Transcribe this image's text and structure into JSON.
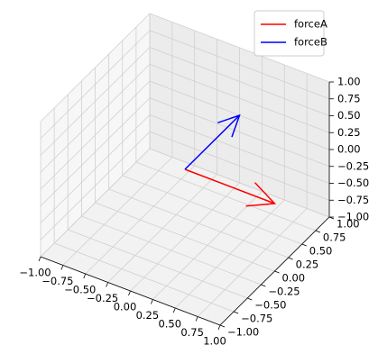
{
  "chart_data": {
    "type": "quiver3d",
    "series": [
      {
        "name": "forceA",
        "color": "#ff0000",
        "origin": [
          0,
          0,
          0
        ],
        "vector": [
          1,
          0,
          0
        ]
      },
      {
        "name": "forceB",
        "color": "#0000ff",
        "origin": [
          0,
          0,
          0
        ],
        "vector": [
          0,
          1,
          0
        ]
      }
    ],
    "xlim": [
      -1,
      1
    ],
    "ylim": [
      -1,
      1
    ],
    "zlim": [
      -1,
      1
    ],
    "xticks": [
      {
        "value": -1,
        "label": "−1.00"
      },
      {
        "value": -0.75,
        "label": "−0.75"
      },
      {
        "value": -0.5,
        "label": "−0.50"
      },
      {
        "value": -0.25,
        "label": "−0.25"
      },
      {
        "value": 0,
        "label": "0.00"
      },
      {
        "value": 0.25,
        "label": "0.25"
      },
      {
        "value": 0.5,
        "label": "0.50"
      },
      {
        "value": 0.75,
        "label": "0.75"
      },
      {
        "value": 1,
        "label": "1.00"
      }
    ],
    "yticks": [
      {
        "value": -1,
        "label": "−1.00"
      },
      {
        "value": -0.75,
        "label": "−0.75"
      },
      {
        "value": -0.5,
        "label": "−0.50"
      },
      {
        "value": -0.25,
        "label": "−0.25"
      },
      {
        "value": 0,
        "label": "0.00"
      },
      {
        "value": 0.25,
        "label": "0.25"
      },
      {
        "value": 0.5,
        "label": "0.50"
      },
      {
        "value": 0.75,
        "label": "0.75"
      },
      {
        "value": 1,
        "label": "1.00"
      }
    ],
    "zticks": [
      {
        "value": -1,
        "label": "−1.00"
      },
      {
        "value": -0.75,
        "label": "−0.75"
      },
      {
        "value": -0.5,
        "label": "−0.50"
      },
      {
        "value": -0.25,
        "label": "−0.25"
      },
      {
        "value": 0,
        "label": "0.00"
      },
      {
        "value": 0.25,
        "label": "0.25"
      },
      {
        "value": 0.5,
        "label": "0.50"
      },
      {
        "value": 0.75,
        "label": "0.75"
      },
      {
        "value": 1,
        "label": "1.00"
      }
    ],
    "grid": true,
    "legend": "upper right"
  }
}
